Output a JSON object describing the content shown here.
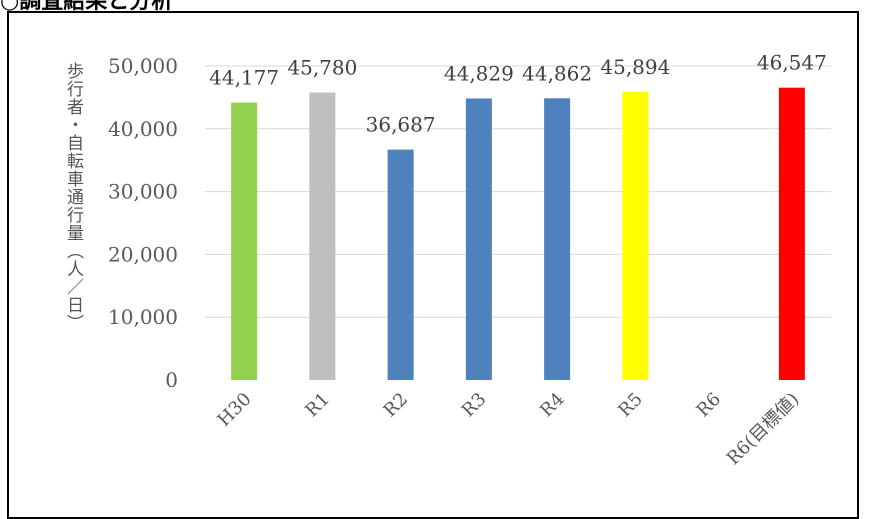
{
  "heading": "○調査結果と分析",
  "chart_data": {
    "type": "bar",
    "title": "",
    "xlabel": "",
    "ylabel": "歩行者・自転車通行量（人／日）",
    "categories": [
      "H30",
      "R1",
      "R2",
      "R3",
      "R4",
      "R5",
      "R6",
      "R6(目標値)"
    ],
    "values": [
      44177,
      45780,
      36687,
      44829,
      44862,
      45894,
      null,
      46547
    ],
    "data_labels": [
      "44,177",
      "45,780",
      "36,687",
      "44,829",
      "44,862",
      "45,894",
      "",
      "46,547"
    ],
    "colors": [
      "#92D050",
      "#BFBFBF",
      "#4F81BD",
      "#4F81BD",
      "#4F81BD",
      "#FFFF00",
      "#4F81BD",
      "#FF0000"
    ],
    "ylim": [
      0,
      50000
    ],
    "yticks": [
      0,
      10000,
      20000,
      30000,
      40000,
      50000
    ],
    "ytick_labels": [
      "0",
      "10,000",
      "20,000",
      "30,000",
      "40,000",
      "50,000"
    ],
    "grid": true,
    "gridline_color": "#d9d9d9",
    "legend": "none"
  }
}
